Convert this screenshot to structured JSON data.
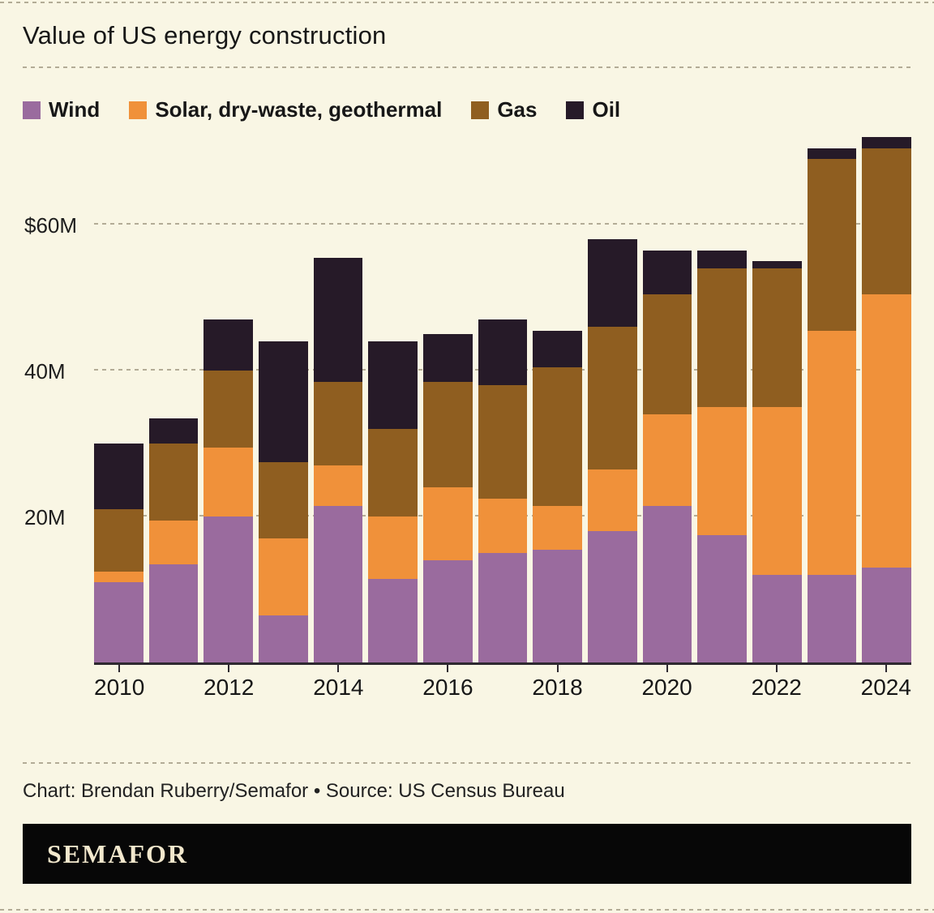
{
  "title": "Value of US energy construction",
  "legend": [
    {
      "label": "Wind",
      "color": "#9a6b9e"
    },
    {
      "label": "Solar, dry-waste, geothermal",
      "color": "#f0913a"
    },
    {
      "label": "Gas",
      "color": "#8f5e20"
    },
    {
      "label": "Oil",
      "color": "#261a28"
    }
  ],
  "chart_data": {
    "type": "bar",
    "stacked": true,
    "title": "Value of US energy construction",
    "unit": "millions of dollars",
    "categories": [
      2010,
      2011,
      2012,
      2013,
      2014,
      2015,
      2016,
      2017,
      2018,
      2019,
      2020,
      2021,
      2022,
      2023,
      2024
    ],
    "series": [
      {
        "name": "Wind",
        "color": "#9a6b9e",
        "values": [
          11,
          13.5,
          20,
          6.5,
          21.5,
          11.5,
          14,
          15,
          15.5,
          18,
          21.5,
          17.5,
          12,
          12,
          13
        ]
      },
      {
        "name": "Solar, dry-waste, geothermal",
        "color": "#f0913a",
        "values": [
          1.5,
          6,
          9.5,
          10.5,
          5.5,
          8.5,
          10,
          7.5,
          6,
          8.5,
          12.5,
          17.5,
          23,
          33.5,
          37.5
        ]
      },
      {
        "name": "Gas",
        "color": "#8f5e20",
        "values": [
          8.5,
          10.5,
          10.5,
          10.5,
          11.5,
          12,
          14.5,
          15.5,
          19,
          19.5,
          16.5,
          19,
          19,
          23.5,
          20
        ]
      },
      {
        "name": "Oil",
        "color": "#261a28",
        "values": [
          9,
          3.5,
          7,
          16.5,
          17,
          12,
          6.5,
          9,
          5,
          12,
          6,
          2.5,
          1,
          1.5,
          1.5
        ]
      }
    ],
    "ylim": [
      0,
      75
    ],
    "y_ticks": [
      {
        "value": 20,
        "label": "20M"
      },
      {
        "value": 40,
        "label": "40M"
      },
      {
        "value": 60,
        "label": "$60M"
      }
    ],
    "x_tick_labels": [
      "2010",
      "2012",
      "2014",
      "2016",
      "2018",
      "2020",
      "2022",
      "2024"
    ],
    "grid": "dashed horizontal",
    "legend_position": "top"
  },
  "footer": {
    "credit": "Chart: Brendan Ruberry/Semafor • Source: US Census Bureau",
    "logo": "SEMAFOR"
  }
}
